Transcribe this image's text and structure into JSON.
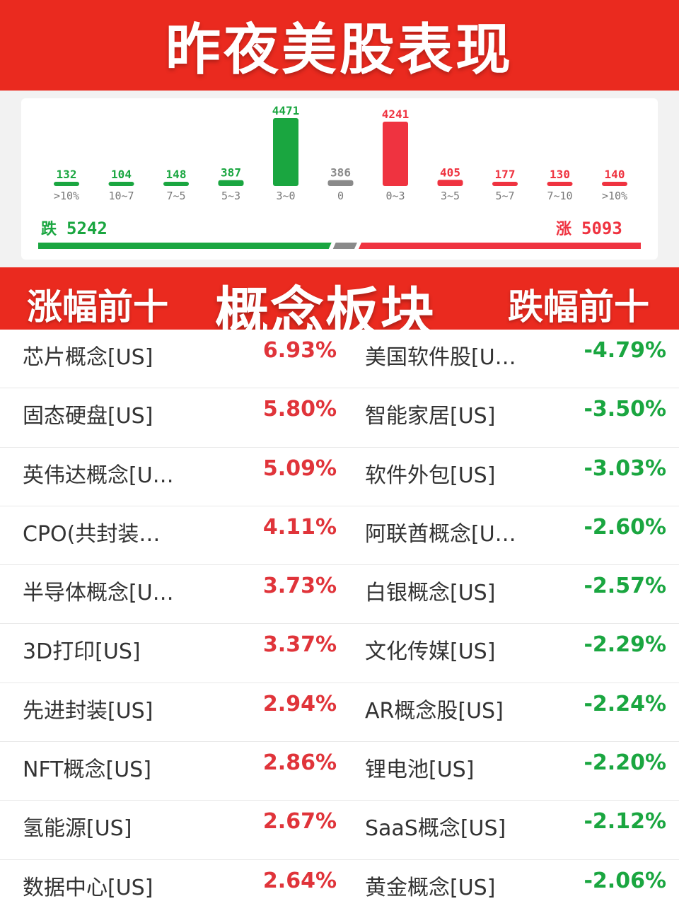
{
  "header": {
    "title": "昨夜美股表现"
  },
  "chart_data": {
    "type": "bar",
    "categories": [
      ">10%",
      "10~7",
      "7~5",
      "5~3",
      "3~0",
      "0",
      "0~3",
      "3~5",
      "5~7",
      "7~10",
      ">10%"
    ],
    "values": [
      132,
      104,
      148,
      387,
      4471,
      386,
      4241,
      405,
      177,
      130,
      140
    ],
    "colors": [
      "#1aa640",
      "#1aa640",
      "#1aa640",
      "#1aa640",
      "#1aa640",
      "#8a8a8a",
      "#ef3340",
      "#ef3340",
      "#ef3340",
      "#ef3340",
      "#ef3340"
    ],
    "down_label": "跌",
    "down_total": "5242",
    "up_label": "涨",
    "up_total": "5093",
    "down_color": "#1aa640",
    "up_color": "#ef3340",
    "flat_color": "#8a8a8a"
  },
  "section": {
    "left_title": "涨幅前十",
    "center_title": "概念板块",
    "right_title": "跌幅前十"
  },
  "gainers": [
    {
      "name": "芯片概念[US]",
      "pct": "6.93%"
    },
    {
      "name": "固态硬盘[US]",
      "pct": "5.80%"
    },
    {
      "name": "英伟达概念[U…",
      "pct": "5.09%"
    },
    {
      "name": "CPO(共封装…",
      "pct": "4.11%"
    },
    {
      "name": "半导体概念[U…",
      "pct": "3.73%"
    },
    {
      "name": "3D打印[US]",
      "pct": "3.37%"
    },
    {
      "name": "先进封装[US]",
      "pct": "2.94%"
    },
    {
      "name": "NFT概念[US]",
      "pct": "2.86%"
    },
    {
      "name": "氢能源[US]",
      "pct": "2.67%"
    },
    {
      "name": "数据中心[US]",
      "pct": "2.64%"
    }
  ],
  "losers": [
    {
      "name": "美国软件股[U…",
      "pct": "-4.79%"
    },
    {
      "name": "智能家居[US]",
      "pct": "-3.50%"
    },
    {
      "name": "软件外包[US]",
      "pct": "-3.03%"
    },
    {
      "name": "阿联酋概念[U…",
      "pct": "-2.60%"
    },
    {
      "name": "白银概念[US]",
      "pct": "-2.57%"
    },
    {
      "name": "文化传媒[US]",
      "pct": "-2.29%"
    },
    {
      "name": "AR概念股[US]",
      "pct": "-2.24%"
    },
    {
      "name": "锂电池[US]",
      "pct": "-2.20%"
    },
    {
      "name": "SaaS概念[US]",
      "pct": "-2.12%"
    },
    {
      "name": "黄金概念[US]",
      "pct": "-2.06%"
    }
  ]
}
